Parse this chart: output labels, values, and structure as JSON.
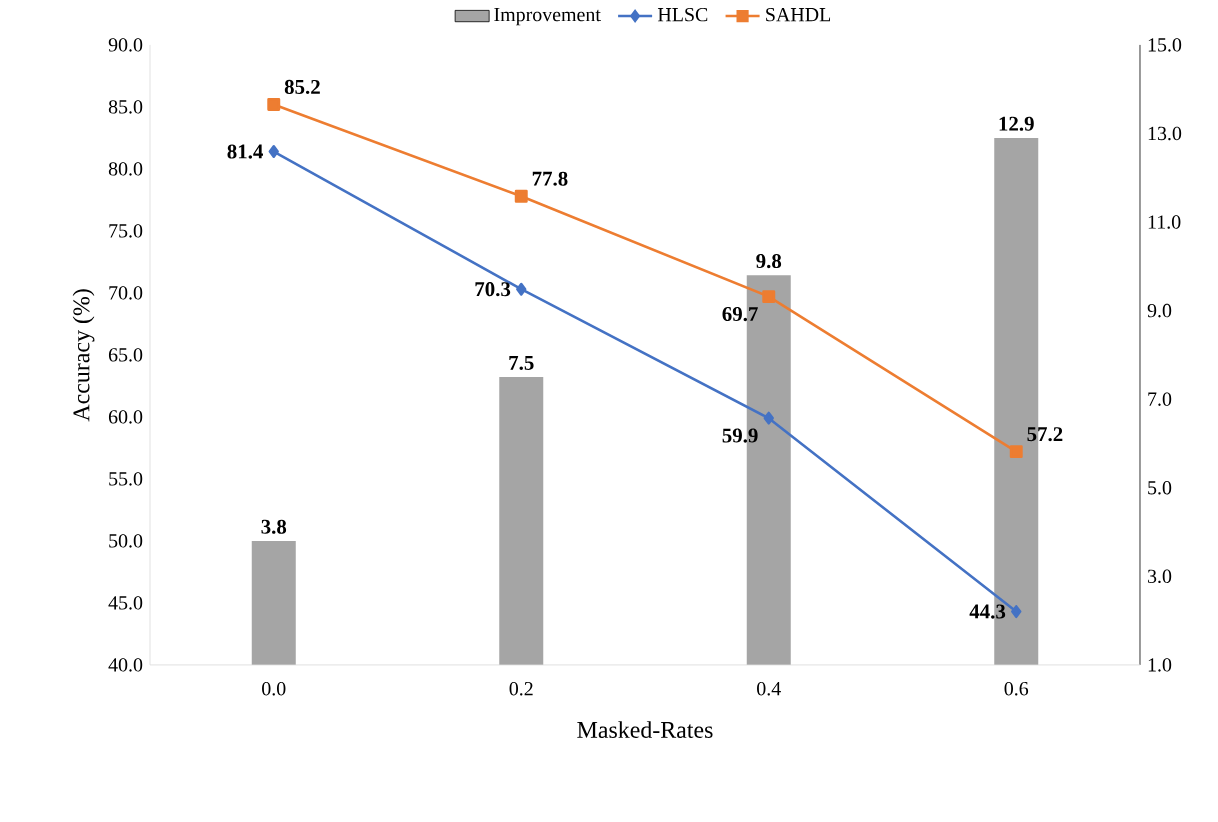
{
  "chart_data": {
    "type": "line",
    "xlabel": "Masked-Rates",
    "ylabel": "Accuracy (%)",
    "categories": [
      "0.0",
      "0.2",
      "0.4",
      "0.6"
    ],
    "series": [
      {
        "name": "Improvement",
        "type": "bar",
        "axis": "y2",
        "color": "#a5a5a5",
        "values": [
          3.8,
          7.5,
          9.8,
          12.9
        ]
      },
      {
        "name": "HLSC",
        "color": "#4472c4",
        "marker": "diamond",
        "values": [
          81.4,
          70.3,
          59.9,
          44.3
        ]
      },
      {
        "name": "SAHDL",
        "color": "#ed7d31",
        "marker": "square",
        "values": [
          85.2,
          77.8,
          69.7,
          57.2
        ]
      }
    ],
    "ylim": [
      40,
      90
    ],
    "yticks": [
      {
        "value": 40,
        "label": "40.0"
      },
      {
        "value": 45,
        "label": "45.0"
      },
      {
        "value": 50,
        "label": "50.0"
      },
      {
        "value": 55,
        "label": "55.0"
      },
      {
        "value": 60,
        "label": "60.0"
      },
      {
        "value": 65,
        "label": "65.0"
      },
      {
        "value": 70,
        "label": "70.0"
      },
      {
        "value": 75,
        "label": "75.0"
      },
      {
        "value": 80,
        "label": "80.0"
      },
      {
        "value": 85,
        "label": "85.0"
      },
      {
        "value": 90,
        "label": "90.0"
      }
    ],
    "y2lim": [
      1,
      15
    ],
    "y2ticks": [
      {
        "value": 1,
        "label": "1.0"
      },
      {
        "value": 3,
        "label": "3.0"
      },
      {
        "value": 5,
        "label": "5.0"
      },
      {
        "value": 7,
        "label": "7.0"
      },
      {
        "value": 9,
        "label": "9.0"
      },
      {
        "value": 11,
        "label": "11.0"
      },
      {
        "value": 13,
        "label": "13.0"
      },
      {
        "value": 15,
        "label": "15.0"
      }
    ],
    "data_labels": true,
    "legend": "top",
    "grid": false
  }
}
